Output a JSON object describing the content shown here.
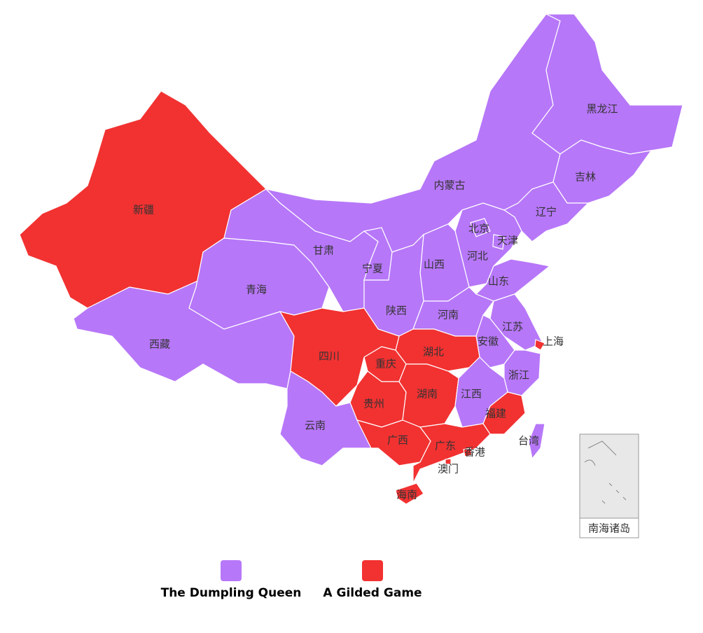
{
  "legend": [
    {
      "label": "The Dumpling Queen",
      "color": "#b777f9"
    },
    {
      "label": "A Gilded Game",
      "color": "#f23131"
    }
  ],
  "regions": [
    {
      "name": "新疆",
      "group": 1
    },
    {
      "name": "西藏",
      "group": 0
    },
    {
      "name": "青海",
      "group": 0
    },
    {
      "name": "甘肃",
      "group": 0
    },
    {
      "name": "宁夏",
      "group": 0
    },
    {
      "name": "内蒙古",
      "group": 0
    },
    {
      "name": "黑龙江",
      "group": 0
    },
    {
      "name": "吉林",
      "group": 0
    },
    {
      "name": "辽宁",
      "group": 0
    },
    {
      "name": "河北",
      "group": 0
    },
    {
      "name": "北京",
      "group": 0
    },
    {
      "name": "天津",
      "group": 0
    },
    {
      "name": "山西",
      "group": 0
    },
    {
      "name": "陕西",
      "group": 0
    },
    {
      "name": "山东",
      "group": 0
    },
    {
      "name": "河南",
      "group": 0
    },
    {
      "name": "江苏",
      "group": 0
    },
    {
      "name": "安徽",
      "group": 0
    },
    {
      "name": "上海",
      "group": 1
    },
    {
      "name": "浙江",
      "group": 0
    },
    {
      "name": "湖北",
      "group": 1
    },
    {
      "name": "重庆",
      "group": 1
    },
    {
      "name": "四川",
      "group": 1
    },
    {
      "name": "贵州",
      "group": 1
    },
    {
      "name": "湖南",
      "group": 1
    },
    {
      "name": "江西",
      "group": 0
    },
    {
      "name": "福建",
      "group": 1
    },
    {
      "name": "云南",
      "group": 0
    },
    {
      "name": "广西",
      "group": 1
    },
    {
      "name": "广东",
      "group": 1
    },
    {
      "name": "香港",
      "group": 1
    },
    {
      "name": "澳门",
      "group": 1
    },
    {
      "name": "海南",
      "group": 1
    },
    {
      "name": "台湾",
      "group": 0
    }
  ],
  "inset": {
    "label": "南海诸岛"
  }
}
